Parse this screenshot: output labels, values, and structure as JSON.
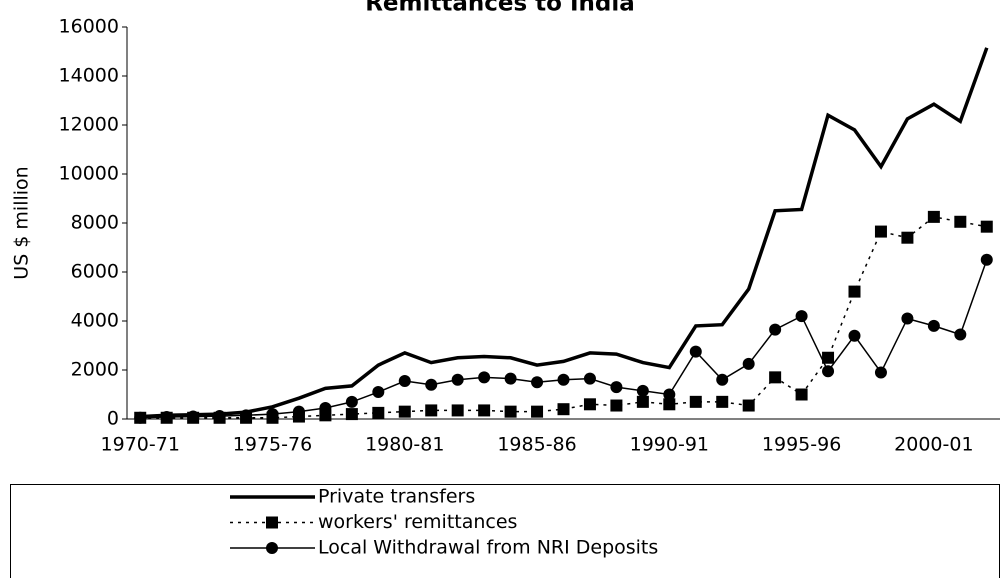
{
  "chart_data": {
    "type": "line",
    "title": "Remittances to India",
    "ylabel": "US $ million",
    "categories": [
      "1970-71",
      null,
      null,
      null,
      null,
      "1975-76",
      null,
      null,
      null,
      null,
      "1980-81",
      null,
      null,
      null,
      null,
      "1985-86",
      null,
      null,
      null,
      null,
      "1990-91",
      null,
      null,
      null,
      null,
      "1995-96",
      null,
      null,
      null,
      null,
      "2000-01",
      null,
      null
    ],
    "series": [
      {
        "name": "Private transfers",
        "color": "#000000",
        "marker": "none",
        "dash": false,
        "width": 3.5,
        "values": [
          100,
          150,
          170,
          200,
          280,
          500,
          850,
          1250,
          1350,
          2200,
          2700,
          2300,
          2500,
          2550,
          2500,
          2200,
          2350,
          2700,
          2650,
          2300,
          2100,
          3800,
          3850,
          5300,
          8500,
          8550,
          12400,
          11800,
          10300,
          12250,
          12850,
          12150,
          15150
        ]
      },
      {
        "name": "workers' remittances",
        "color": "#000000",
        "marker": "square",
        "dash": true,
        "width": 1.5,
        "values": [
          50,
          50,
          50,
          50,
          50,
          50,
          100,
          150,
          200,
          250,
          300,
          350,
          350,
          350,
          300,
          300,
          400,
          600,
          550,
          700,
          600,
          700,
          700,
          550,
          1700,
          1000,
          2500,
          5200,
          7650,
          7400,
          8250,
          8050,
          7850
        ]
      },
      {
        "name": "Local Withdrawal from NRI Deposits",
        "color": "#000000",
        "marker": "circle",
        "dash": false,
        "width": 1.5,
        "values": [
          50,
          80,
          100,
          120,
          150,
          200,
          300,
          450,
          700,
          1100,
          1550,
          1400,
          1600,
          1700,
          1650,
          1500,
          1600,
          1650,
          1300,
          1150,
          1000,
          2750,
          1600,
          2250,
          3650,
          4200,
          1950,
          3400,
          1900,
          4100,
          3800,
          3450,
          6500
        ]
      }
    ],
    "ylim": [
      0,
      16000
    ],
    "yticks": [
      0,
      2000,
      4000,
      6000,
      8000,
      10000,
      12000,
      14000,
      16000
    ],
    "grid": false,
    "legend": "bottom"
  }
}
